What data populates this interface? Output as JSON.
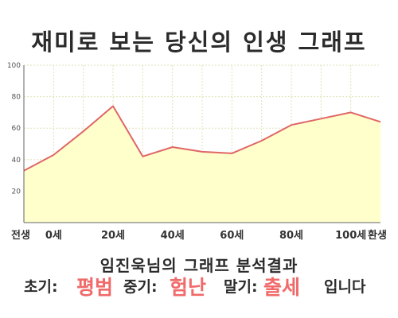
{
  "title": "재미로 보는 당신의 인생 그래프",
  "chart_data": {
    "type": "area",
    "title": "",
    "xlabel": "",
    "ylabel": "",
    "x_ticks": [
      "전생",
      "0세",
      "20세",
      "40세",
      "60세",
      "80세",
      "100세",
      "환생"
    ],
    "y_ticks": [
      "100",
      "80",
      "60",
      "40",
      "20"
    ],
    "ylim": [
      0,
      100
    ],
    "grid": true,
    "legend": "none",
    "colors": {
      "line": "#e06666",
      "fill": "#ffffcc",
      "grid": "#e0e0b8",
      "axis": "#666666"
    },
    "series": [
      {
        "points": [
          {
            "x": "전생",
            "y": 33
          },
          {
            "x": "0세",
            "y": 43
          },
          {
            "x": "10세",
            "y": 58
          },
          {
            "x": "20세",
            "y": 74
          },
          {
            "x": "30세",
            "y": 42
          },
          {
            "x": "40세",
            "y": 48
          },
          {
            "x": "50세",
            "y": 45
          },
          {
            "x": "60세",
            "y": 44
          },
          {
            "x": "70세",
            "y": 52
          },
          {
            "x": "80세",
            "y": 62
          },
          {
            "x": "90세",
            "y": 66
          },
          {
            "x": "100세",
            "y": 70
          },
          {
            "x": "환생",
            "y": 64
          }
        ]
      }
    ]
  },
  "result": {
    "heading": "임진욱님의 그래프 분석결과",
    "early_label": "초기:",
    "early_value": "평범",
    "middle_label": "중기:",
    "middle_value": "험난",
    "late_label": "말기:",
    "late_value": "출세",
    "ending": "입니다"
  }
}
